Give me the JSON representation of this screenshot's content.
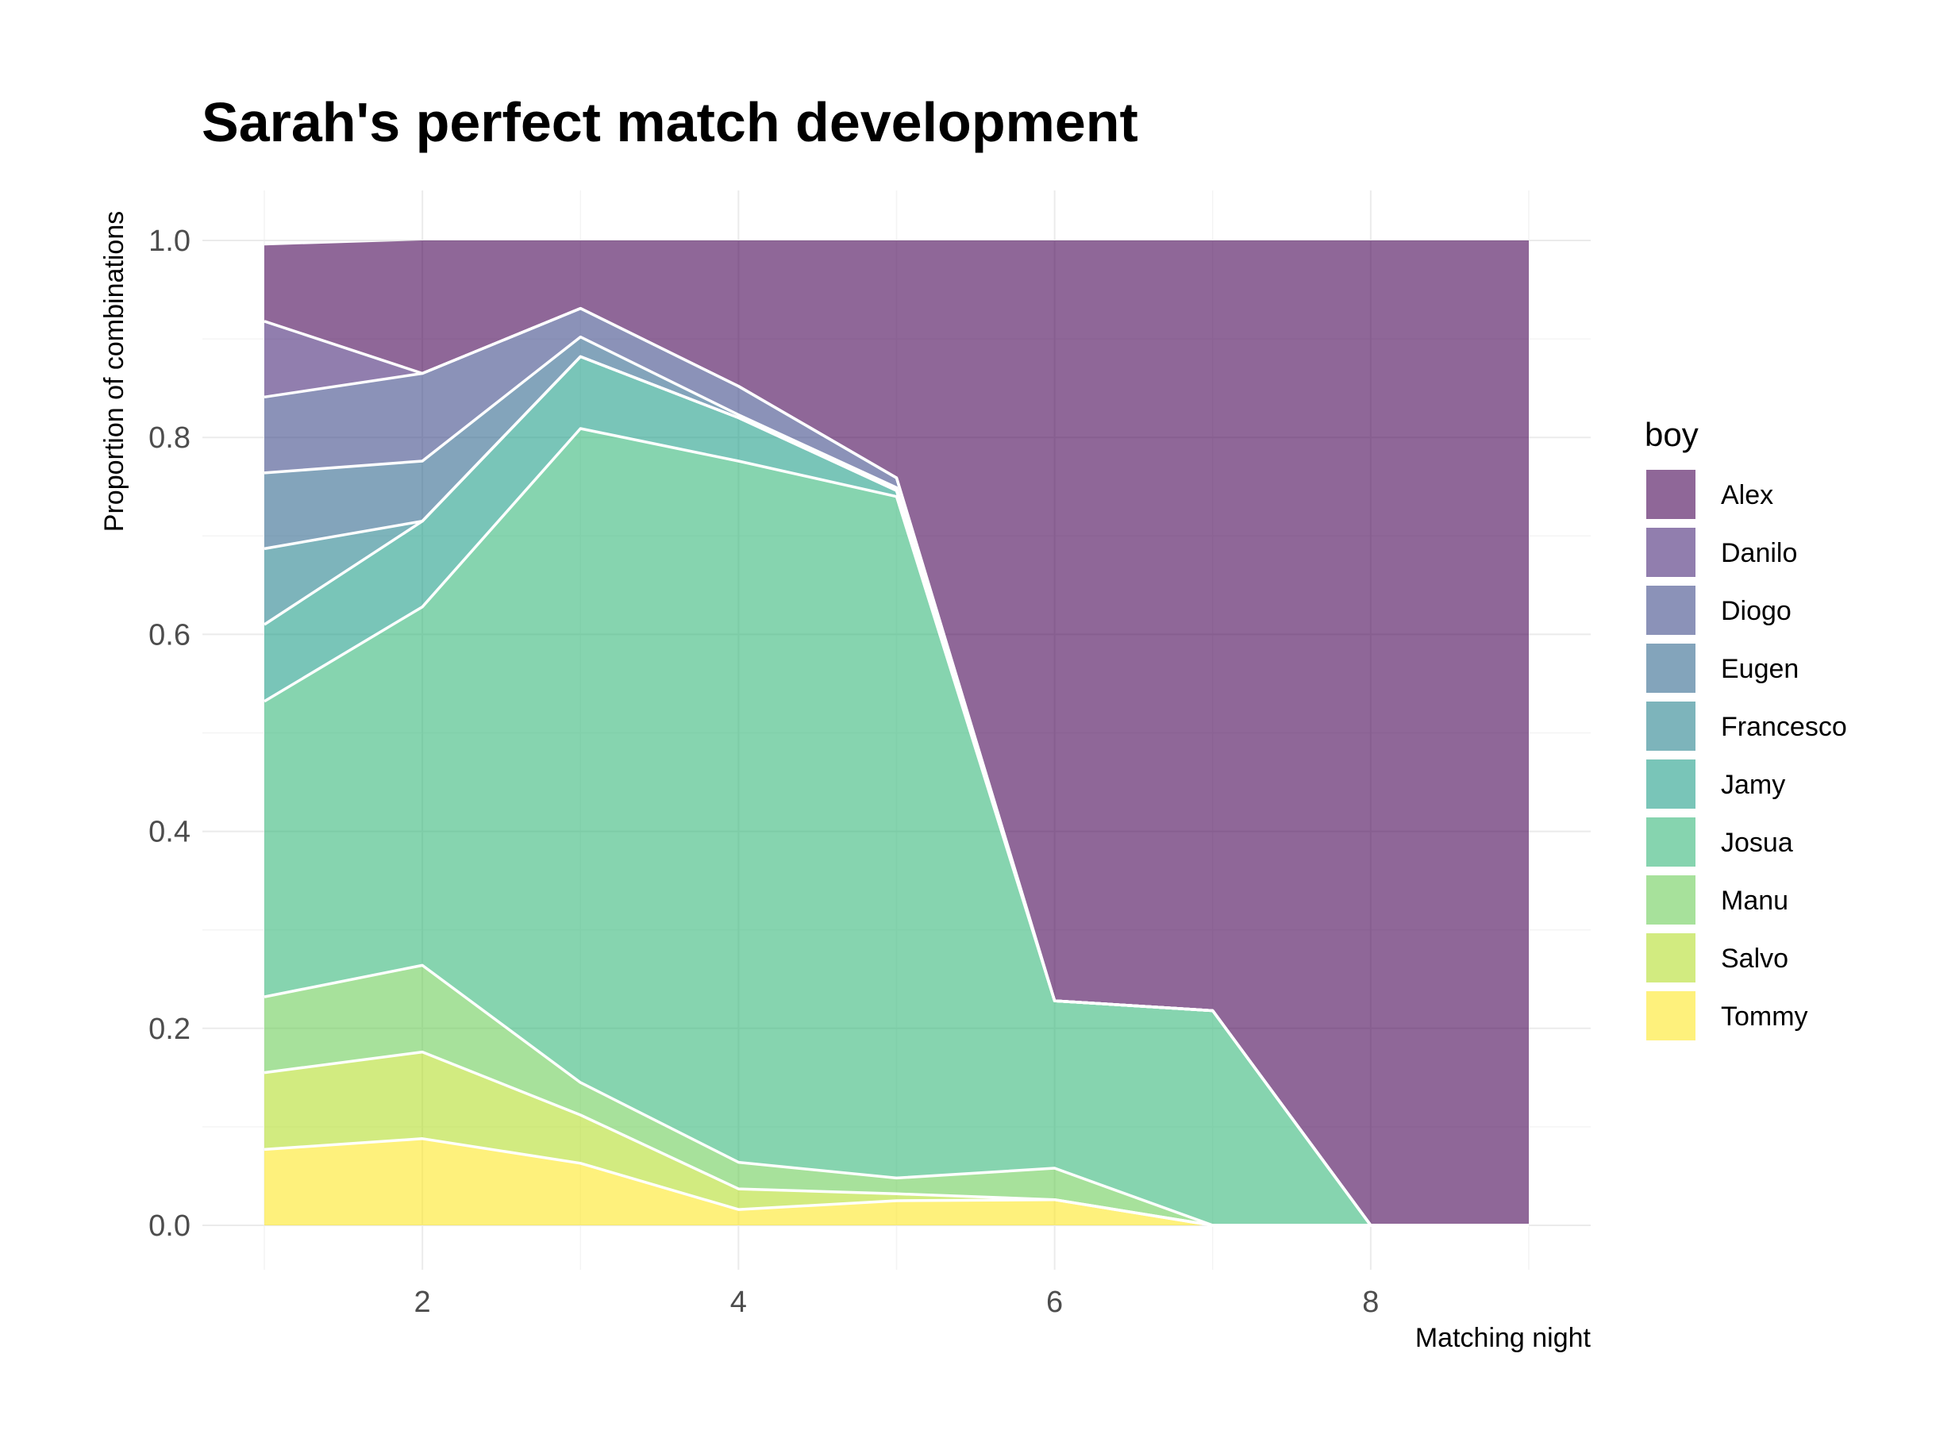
{
  "chart_data": {
    "type": "area",
    "stacked": true,
    "normalized": true,
    "title": "Sarah's perfect match development",
    "xlabel": "Matching night",
    "ylabel": "Proportion of combinations",
    "xlim": [
      1,
      9
    ],
    "ylim": [
      0,
      1.0
    ],
    "x_ticks": [
      2,
      4,
      6,
      8
    ],
    "y_ticks": [
      0.0,
      0.2,
      0.4,
      0.6,
      0.8,
      1.0
    ],
    "y_tick_labels": [
      "0.0",
      "0.2",
      "0.4",
      "0.6",
      "0.8",
      "1.0"
    ],
    "grid": true,
    "legend_title": "boy",
    "legend_position": "right",
    "x": [
      1,
      2,
      3,
      4,
      5,
      6,
      7,
      8,
      9
    ],
    "series": [
      {
        "name": "Alex",
        "color": "#440154",
        "values": [
          0.077,
          0.135,
          0.069,
          0.148,
          0.241,
          0.772,
          0.782,
          1.0,
          1.0
        ]
      },
      {
        "name": "Danilo",
        "color": "#482878",
        "values": [
          0.077,
          0.0,
          0.0,
          0.0,
          0.0,
          0.0,
          0.0,
          0.0,
          0.0
        ]
      },
      {
        "name": "Diogo",
        "color": "#3E4A89",
        "values": [
          0.077,
          0.089,
          0.029,
          0.029,
          0.01,
          0.0,
          0.0,
          0.0,
          0.0
        ]
      },
      {
        "name": "Eugen",
        "color": "#31688E",
        "values": [
          0.077,
          0.061,
          0.02,
          0.003,
          0.003,
          0.0,
          0.0,
          0.0,
          0.0
        ]
      },
      {
        "name": "Francesco",
        "color": "#26828E",
        "values": [
          0.077,
          0.0,
          0.0,
          0.0,
          0.0,
          0.0,
          0.0,
          0.0,
          0.0
        ]
      },
      {
        "name": "Jamy",
        "color": "#1F9E89",
        "values": [
          0.078,
          0.087,
          0.073,
          0.044,
          0.006,
          0.0,
          0.0,
          0.0,
          0.0
        ]
      },
      {
        "name": "Josua",
        "color": "#35B779",
        "values": [
          0.3,
          0.364,
          0.664,
          0.712,
          0.692,
          0.17,
          0.218,
          0.0,
          0.0
        ]
      },
      {
        "name": "Manu",
        "color": "#6DCD59",
        "values": [
          0.077,
          0.088,
          0.033,
          0.027,
          0.016,
          0.032,
          0.0,
          0.0,
          0.0
        ]
      },
      {
        "name": "Salvo",
        "color": "#B4DE2C",
        "values": [
          0.078,
          0.088,
          0.049,
          0.021,
          0.007,
          0.0,
          0.0,
          0.0,
          0.0
        ]
      },
      {
        "name": "Tommy",
        "color": "#FDE725",
        "values": [
          0.077,
          0.088,
          0.063,
          0.016,
          0.025,
          0.026,
          0.0,
          0.0,
          0.0
        ]
      }
    ]
  }
}
